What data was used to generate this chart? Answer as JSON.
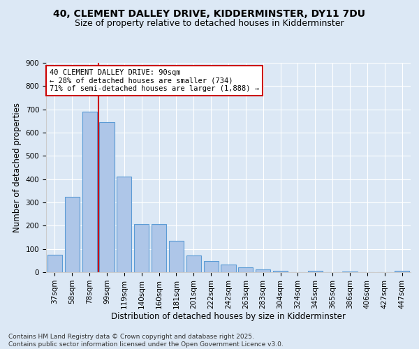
{
  "title": "40, CLEMENT DALLEY DRIVE, KIDDERMINSTER, DY11 7DU",
  "subtitle": "Size of property relative to detached houses in Kidderminster",
  "xlabel": "Distribution of detached houses by size in Kidderminster",
  "ylabel": "Number of detached properties",
  "bar_labels": [
    "37sqm",
    "58sqm",
    "78sqm",
    "99sqm",
    "119sqm",
    "140sqm",
    "160sqm",
    "181sqm",
    "201sqm",
    "222sqm",
    "242sqm",
    "263sqm",
    "283sqm",
    "304sqm",
    "324sqm",
    "345sqm",
    "365sqm",
    "386sqm",
    "406sqm",
    "427sqm",
    "447sqm"
  ],
  "bar_values": [
    75,
    325,
    690,
    645,
    410,
    208,
    208,
    135,
    72,
    47,
    33,
    22,
    12,
    5,
    0,
    5,
    0,
    3,
    0,
    0,
    7
  ],
  "bar_color": "#aec6e8",
  "bar_edge_color": "#5b9bd5",
  "annotation_text": "40 CLEMENT DALLEY DRIVE: 90sqm\n← 28% of detached houses are smaller (734)\n71% of semi-detached houses are larger (1,888) →",
  "annotation_box_color": "#ffffff",
  "annotation_border_color": "#cc0000",
  "vline_color": "#cc0000",
  "vline_x_index": 2,
  "ylim": [
    0,
    900
  ],
  "yticks": [
    0,
    100,
    200,
    300,
    400,
    500,
    600,
    700,
    800,
    900
  ],
  "background_color": "#dce8f5",
  "axes_background": "#dce8f5",
  "footnote": "Contains HM Land Registry data © Crown copyright and database right 2025.\nContains public sector information licensed under the Open Government Licence v3.0.",
  "title_fontsize": 10,
  "subtitle_fontsize": 9,
  "xlabel_fontsize": 8.5,
  "ylabel_fontsize": 8.5,
  "tick_fontsize": 7.5,
  "annotation_fontsize": 7.5,
  "footnote_fontsize": 6.5
}
